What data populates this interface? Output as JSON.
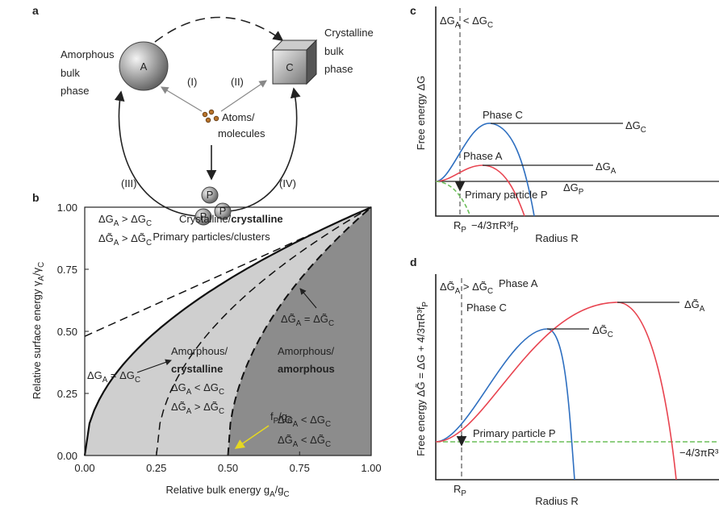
{
  "panel_a": {
    "label": "a",
    "amorphous_phase": [
      "Amorphous",
      "bulk",
      "phase"
    ],
    "letter_a": "A",
    "crystalline_phase": [
      "Crystalline",
      "bulk",
      "phase"
    ],
    "letter_c": "C",
    "atoms": [
      "Atoms/",
      "molecules"
    ],
    "path_1": "(I)",
    "path_2": "(II)",
    "path_3": "(III)",
    "path_4": "(IV)",
    "particle": "P",
    "particles_caption": "Primary particles/clusters"
  },
  "panel_b": {
    "label": "b",
    "x_axis_label": [
      "Relative bulk energy g",
      {
        "sub": "A"
      },
      "/g",
      {
        "sub": "C"
      }
    ],
    "y_axis_label": [
      "Relative surface energy γ",
      {
        "sub": "A"
      },
      "/γ",
      {
        "sub": "C"
      }
    ],
    "x_ticks": [
      "0.00",
      "0.25",
      "0.50",
      "0.75",
      "1.00"
    ],
    "y_ticks": [
      "0.00",
      "0.25",
      "0.50",
      "0.75",
      "1.00"
    ],
    "top_left": [
      [
        "ΔG",
        {
          "sub": "A"
        },
        " > ΔG",
        {
          "sub": "C"
        }
      ],
      [
        "ΔG̃",
        {
          "sub": "A"
        },
        " > ΔG̃",
        {
          "sub": "C"
        }
      ]
    ],
    "crystalline_region": [
      "Crystalline/",
      {
        "b": "crystalline"
      }
    ],
    "solid_curve_label": [
      "ΔG",
      {
        "sub": "A"
      },
      " = ΔG",
      {
        "sub": "C"
      }
    ],
    "dashed_curve_label": [
      "ΔG̃",
      {
        "sub": "A"
      },
      " = ΔG̃",
      {
        "sub": "C"
      }
    ],
    "mixed_region": [
      [
        "Amorphous/"
      ],
      [
        {
          "b": "crystalline"
        }
      ],
      [
        "ΔG",
        {
          "sub": "A"
        },
        " < ΔG",
        {
          "sub": "C"
        }
      ],
      [
        "ΔG̃",
        {
          "sub": "A"
        },
        " > ΔG̃",
        {
          "sub": "C"
        }
      ]
    ],
    "amorphous_region": [
      [
        "Amorphous/"
      ],
      [
        {
          "b": "amorphous"
        }
      ],
      [
        "ΔG",
        {
          "sub": "A"
        },
        " < ΔG",
        {
          "sub": "C"
        }
      ],
      [
        "ΔG̃",
        {
          "sub": "A"
        },
        " < ΔG̃",
        {
          "sub": "C"
        }
      ]
    ],
    "ratio_label": [
      "f",
      {
        "sub": "P"
      },
      "/g",
      {
        "sub": "C"
      }
    ]
  },
  "panel_c": {
    "label": "c",
    "condition": [
      "ΔG",
      {
        "sub": "A"
      },
      " < ΔG",
      {
        "sub": "C"
      }
    ],
    "y_axis_label": "Free energy ΔG",
    "x_axis_label": "Radius R",
    "phase_c": "Phase C",
    "phase_a": "Phase A",
    "barrier_c": [
      "ΔG",
      {
        "sub": "C"
      }
    ],
    "barrier_a": [
      "ΔG",
      {
        "sub": "A"
      }
    ],
    "barrier_p": [
      "ΔG",
      {
        "sub": "P"
      }
    ],
    "particle": "Primary particle P",
    "radius_p": [
      "R",
      {
        "sub": "P"
      }
    ],
    "bulk_term": [
      "−4/3πR³f",
      {
        "sub": "P"
      }
    ]
  },
  "panel_d": {
    "label": "d",
    "condition": [
      "ΔG̃",
      {
        "sub": "A"
      },
      " > ΔG̃",
      {
        "sub": "C"
      }
    ],
    "y_axis_label": [
      "Free energy ΔG̃ = ΔG + 4/3πR³f",
      {
        "sub": "P"
      }
    ],
    "x_axis_label": "Radius R",
    "phase_a": "Phase A",
    "phase_c": "Phase C",
    "barrier_a": [
      "ΔG̃",
      {
        "sub": "A"
      }
    ],
    "barrier_c": [
      "ΔG̃",
      {
        "sub": "C"
      }
    ],
    "particle": "Primary particle P",
    "radius_p": [
      "R",
      {
        "sub": "P"
      }
    ],
    "bulk_term": "−4/3πR³"
  }
}
